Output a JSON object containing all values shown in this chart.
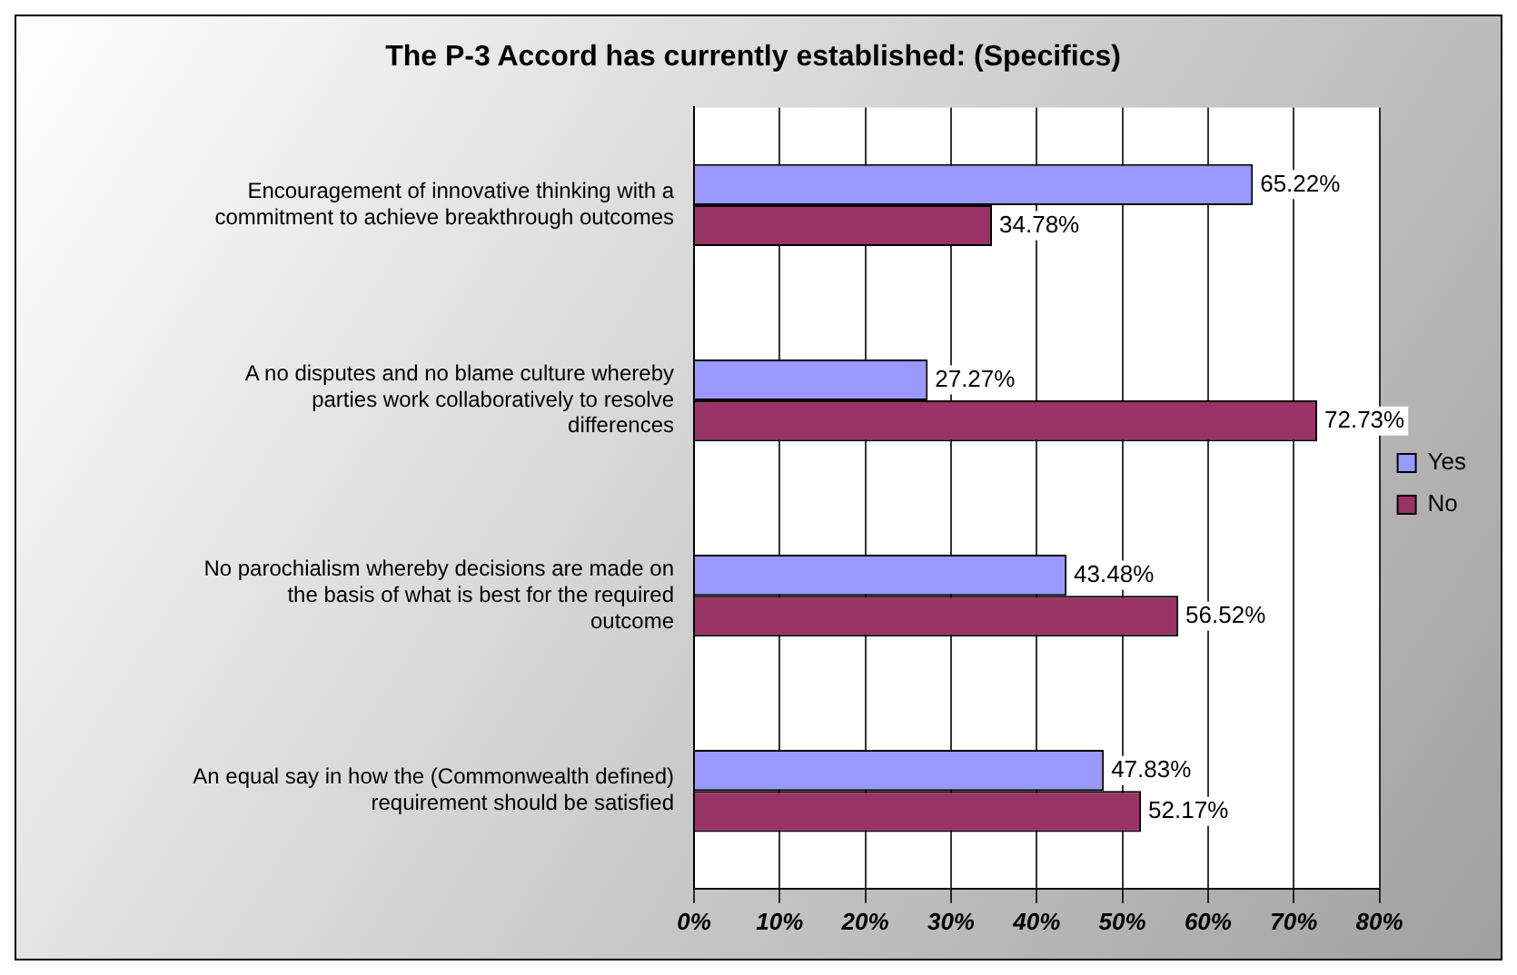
{
  "chart_data": {
    "type": "bar",
    "orientation": "horizontal",
    "title": "The P-3 Accord has currently established: (Specifics)",
    "categories": [
      "Encouragement of innovative thinking with a commitment to achieve breakthrough outcomes",
      "A no disputes and no blame culture whereby parties work collaboratively to resolve differences",
      "No parochialism whereby decisions are made on the basis of what is best for the required outcome",
      "An equal say in how the (Commonwealth defined) requirement should be satisfied"
    ],
    "series": [
      {
        "name": "Yes",
        "color": "#9999ff",
        "values": [
          65.22,
          27.27,
          43.48,
          47.83
        ],
        "value_labels": [
          "65.22%",
          "27.27%",
          "43.48%",
          "47.83%"
        ]
      },
      {
        "name": "No",
        "color": "#993366",
        "values": [
          34.78,
          72.73,
          56.52,
          52.17
        ],
        "value_labels": [
          "34.78%",
          "72.73%",
          "56.52%",
          "52.17%"
        ]
      }
    ],
    "xlim": [
      0,
      80
    ],
    "xticks": [
      {
        "value": 0,
        "label": "0%"
      },
      {
        "value": 10,
        "label": "10%"
      },
      {
        "value": 20,
        "label": "20%"
      },
      {
        "value": 30,
        "label": "30%"
      },
      {
        "value": 40,
        "label": "40%"
      },
      {
        "value": 50,
        "label": "50%"
      },
      {
        "value": 60,
        "label": "60%"
      },
      {
        "value": 70,
        "label": "70%"
      },
      {
        "value": 80,
        "label": "80%"
      }
    ],
    "grid": "x",
    "legend": "right"
  }
}
